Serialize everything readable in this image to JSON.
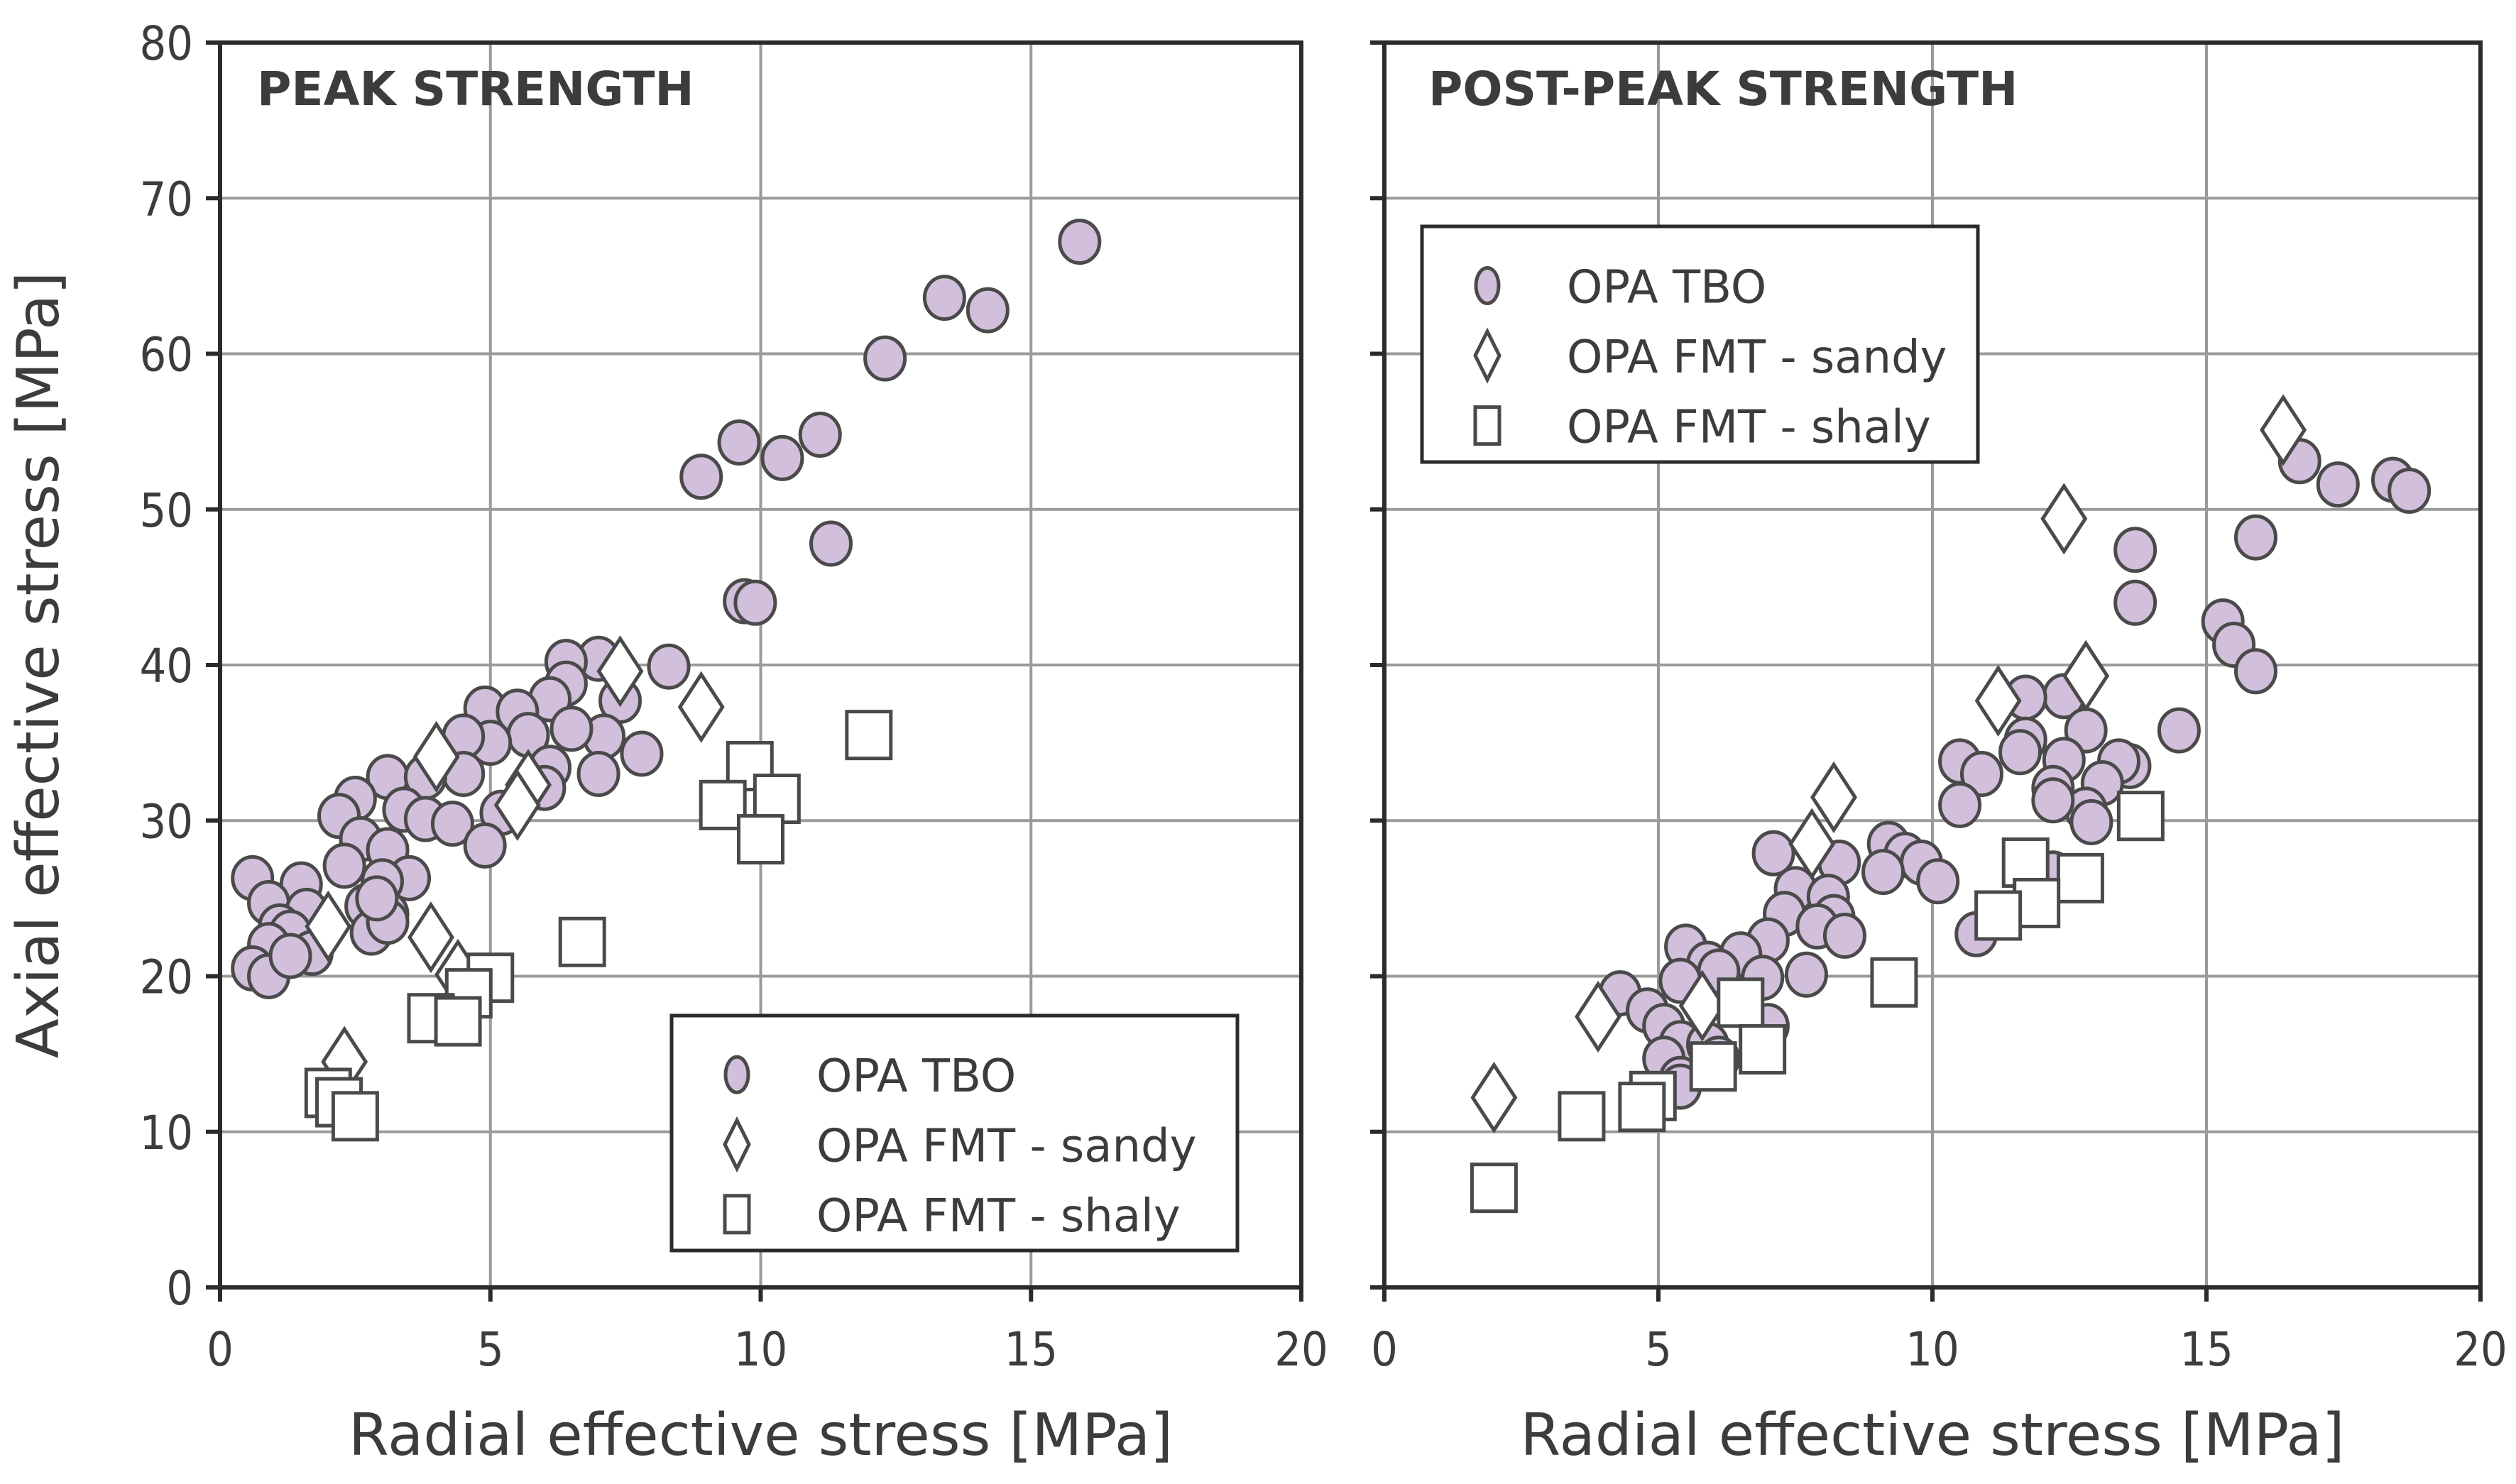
{
  "chart_data": [
    {
      "type": "scatter",
      "title": "PEAK STRENGTH",
      "xlabel": "Radial effective stress [MPa]",
      "ylabel": "Axial effective stress [MPa]",
      "xlim": [
        0,
        20
      ],
      "ylim": [
        0,
        80
      ],
      "xticks": [
        0,
        5,
        10,
        15,
        20
      ],
      "yticks": [
        0,
        10,
        20,
        30,
        40,
        50,
        60,
        70,
        80
      ],
      "grid": true,
      "legend_position": "bottom-right",
      "series": [
        {
          "name": "OPA TBO",
          "marker": "circle",
          "points": [
            [
              15.9,
              67.2
            ],
            [
              13.4,
              63.6
            ],
            [
              14.2,
              62.8
            ],
            [
              12.3,
              59.7
            ],
            [
              9.6,
              54.3
            ],
            [
              11.1,
              54.8
            ],
            [
              10.4,
              53.3
            ],
            [
              8.9,
              52.1
            ],
            [
              11.3,
              47.8
            ],
            [
              9.7,
              44.1
            ],
            [
              9.9,
              44.0
            ],
            [
              8.3,
              39.9
            ],
            [
              7.0,
              40.4
            ],
            [
              6.4,
              40.2
            ],
            [
              6.4,
              38.8
            ],
            [
              6.1,
              37.8
            ],
            [
              7.4,
              37.7
            ],
            [
              4.9,
              37.2
            ],
            [
              5.5,
              37.0
            ],
            [
              5.7,
              35.5
            ],
            [
              7.1,
              35.4
            ],
            [
              6.5,
              35.9
            ],
            [
              5.0,
              35.0
            ],
            [
              4.5,
              35.4
            ],
            [
              7.8,
              34.3
            ],
            [
              6.1,
              33.4
            ],
            [
              7.0,
              33.0
            ],
            [
              6.0,
              32.1
            ],
            [
              4.5,
              33.0
            ],
            [
              3.1,
              32.8
            ],
            [
              2.5,
              31.4
            ],
            [
              3.8,
              32.8
            ],
            [
              3.4,
              30.7
            ],
            [
              3.8,
              30.1
            ],
            [
              4.3,
              29.8
            ],
            [
              5.2,
              30.5
            ],
            [
              4.9,
              28.4
            ],
            [
              2.2,
              30.3
            ],
            [
              2.6,
              28.8
            ],
            [
              2.3,
              27.1
            ],
            [
              3.1,
              28.1
            ],
            [
              3.5,
              26.3
            ],
            [
              3.0,
              26.1
            ],
            [
              2.7,
              24.5
            ],
            [
              3.1,
              24.0
            ],
            [
              2.8,
              22.8
            ],
            [
              3.1,
              23.5
            ],
            [
              2.9,
              25.0
            ],
            [
              0.6,
              26.3
            ],
            [
              1.5,
              25.9
            ],
            [
              0.9,
              24.7
            ],
            [
              1.6,
              24.2
            ],
            [
              1.1,
              23.2
            ],
            [
              1.3,
              22.8
            ],
            [
              0.9,
              22.0
            ],
            [
              1.7,
              21.5
            ],
            [
              0.6,
              20.5
            ],
            [
              0.9,
              20.0
            ],
            [
              1.3,
              21.3
            ]
          ]
        },
        {
          "name": "OPA FMT - sandy",
          "marker": "diamond",
          "points": [
            [
              7.4,
              39.6
            ],
            [
              8.9,
              37.3
            ],
            [
              4.0,
              34.1
            ],
            [
              5.7,
              32.3
            ],
            [
              5.5,
              31.0
            ],
            [
              2.0,
              23.2
            ],
            [
              3.9,
              22.5
            ],
            [
              4.4,
              20.1
            ],
            [
              2.3,
              14.5
            ]
          ]
        },
        {
          "name": "OPA FMT - shaly",
          "marker": "square",
          "points": [
            [
              12.0,
              35.5
            ],
            [
              9.8,
              33.5
            ],
            [
              9.3,
              31.0
            ],
            [
              10.3,
              31.4
            ],
            [
              10.0,
              28.8
            ],
            [
              6.7,
              22.2
            ],
            [
              5.0,
              19.9
            ],
            [
              4.6,
              18.9
            ],
            [
              3.9,
              17.3
            ],
            [
              4.4,
              17.1
            ],
            [
              2.0,
              12.5
            ],
            [
              2.2,
              11.9
            ],
            [
              2.5,
              11.0
            ]
          ]
        }
      ]
    },
    {
      "type": "scatter",
      "title": "POST-PEAK STRENGTH",
      "xlabel": "Radial effective stress [MPa]",
      "ylabel": "",
      "xlim": [
        0,
        20
      ],
      "ylim": [
        0,
        80
      ],
      "xticks": [
        0,
        5,
        10,
        15,
        20
      ],
      "yticks": [
        0,
        10,
        20,
        30,
        40,
        50,
        60,
        70,
        80
      ],
      "grid": true,
      "legend_position": "top-left",
      "series": [
        {
          "name": "OPA TBO",
          "marker": "circle",
          "points": [
            [
              16.7,
              53.1
            ],
            [
              17.4,
              51.6
            ],
            [
              18.4,
              51.9
            ],
            [
              18.7,
              51.2
            ],
            [
              15.9,
              48.2
            ],
            [
              13.7,
              47.4
            ],
            [
              13.7,
              44.0
            ],
            [
              15.3,
              42.8
            ],
            [
              15.5,
              41.3
            ],
            [
              15.9,
              39.6
            ],
            [
              14.5,
              35.8
            ],
            [
              12.4,
              38.0
            ],
            [
              11.7,
              37.9
            ],
            [
              12.8,
              35.8
            ],
            [
              11.7,
              35.2
            ],
            [
              11.6,
              34.4
            ],
            [
              12.4,
              33.9
            ],
            [
              13.6,
              33.5
            ],
            [
              13.4,
              33.8
            ],
            [
              13.1,
              32.4
            ],
            [
              12.2,
              32.1
            ],
            [
              12.8,
              30.7
            ],
            [
              12.9,
              29.9
            ],
            [
              10.5,
              33.8
            ],
            [
              10.9,
              33.0
            ],
            [
              10.5,
              31.0
            ],
            [
              12.2,
              31.3
            ],
            [
              10.8,
              22.7
            ],
            [
              12.2,
              26.6
            ],
            [
              9.2,
              28.5
            ],
            [
              9.5,
              27.8
            ],
            [
              9.8,
              27.3
            ],
            [
              10.1,
              26.1
            ],
            [
              9.1,
              26.7
            ],
            [
              7.1,
              27.9
            ],
            [
              8.3,
              27.3
            ],
            [
              7.5,
              25.6
            ],
            [
              8.1,
              25.1
            ],
            [
              8.2,
              23.8
            ],
            [
              7.3,
              24.0
            ],
            [
              7.9,
              23.2
            ],
            [
              7.0,
              22.3
            ],
            [
              8.4,
              22.6
            ],
            [
              6.5,
              21.4
            ],
            [
              7.7,
              20.1
            ],
            [
              5.5,
              21.9
            ],
            [
              5.9,
              20.8
            ],
            [
              6.1,
              20.3
            ],
            [
              6.9,
              19.9
            ],
            [
              4.3,
              18.9
            ],
            [
              4.8,
              17.8
            ],
            [
              5.4,
              19.7
            ],
            [
              5.1,
              16.8
            ],
            [
              7.0,
              16.8
            ],
            [
              5.4,
              15.7
            ],
            [
              5.9,
              15.6
            ],
            [
              6.1,
              14.7
            ],
            [
              5.1,
              14.7
            ],
            [
              5.4,
              13.4
            ],
            [
              5.4,
              12.9
            ]
          ]
        },
        {
          "name": "OPA FMT - sandy",
          "marker": "diamond",
          "points": [
            [
              16.4,
              55.1
            ],
            [
              12.4,
              49.4
            ],
            [
              12.8,
              39.3
            ],
            [
              11.2,
              37.7
            ],
            [
              8.2,
              31.5
            ],
            [
              7.8,
              28.5
            ],
            [
              5.8,
              18.1
            ],
            [
              3.9,
              17.4
            ],
            [
              2.0,
              12.2
            ]
          ]
        },
        {
          "name": "OPA FMT - shaly",
          "marker": "square",
          "points": [
            [
              13.8,
              30.3
            ],
            [
              11.7,
              27.3
            ],
            [
              12.7,
              26.3
            ],
            [
              11.9,
              24.7
            ],
            [
              11.2,
              23.9
            ],
            [
              9.3,
              19.6
            ],
            [
              6.5,
              18.3
            ],
            [
              6.9,
              15.3
            ],
            [
              6.0,
              14.2
            ],
            [
              4.9,
              12.3
            ],
            [
              4.7,
              11.6
            ],
            [
              3.6,
              11.0
            ],
            [
              2.0,
              6.4
            ]
          ]
        }
      ]
    }
  ],
  "colors": {
    "tbo_fill": "#d1bfdb",
    "marker_stroke": "#4a4a4a",
    "open_fill": "#ffffff",
    "grid": "#9a9a9a",
    "text": "#3c3c3c"
  },
  "legend": {
    "items": [
      "OPA TBO",
      "OPA FMT - sandy",
      "OPA FMT - shaly"
    ]
  }
}
